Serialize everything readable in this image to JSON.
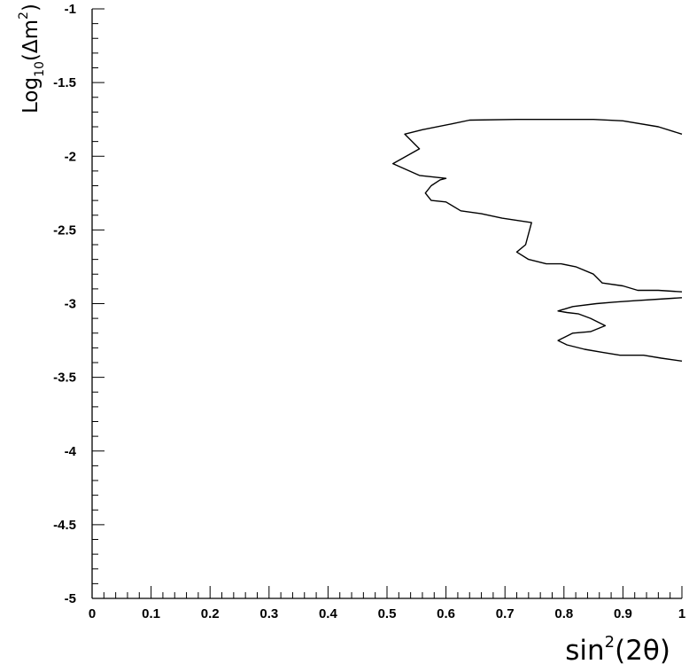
{
  "chart_data": {
    "type": "line",
    "title": "",
    "xlabel": {
      "base": "sin",
      "sup": "2",
      "rest": "(2θ)"
    },
    "ylabel": {
      "base": "Log",
      "sub": "10",
      "mid": "(Δm",
      "sup": "2",
      "end": ")"
    },
    "xlim": [
      0,
      1
    ],
    "ylim": [
      -5,
      -1
    ],
    "grid": false,
    "x_ticks": [
      0,
      0.1,
      0.2,
      0.3,
      0.4,
      0.5,
      0.6,
      0.7,
      0.8,
      0.9,
      1
    ],
    "x_tick_labels": [
      "0",
      "0.1",
      "0.2",
      "0.3",
      "0.4",
      "0.5",
      "0.6",
      "0.7",
      "0.8",
      "0.9",
      "1"
    ],
    "y_ticks": [
      -1,
      -1.5,
      -2,
      -2.5,
      -3,
      -3.5,
      -4,
      -4.5,
      -5
    ],
    "y_tick_labels": [
      "-1",
      "-1.5",
      "-2",
      "-2.5",
      "-3",
      "-3.5",
      "-4",
      "-4.5",
      "-5"
    ],
    "series": [
      {
        "points": [
          [
            1.0,
            -1.85
          ],
          [
            0.96,
            -1.8
          ],
          [
            0.9,
            -1.76
          ],
          [
            0.85,
            -1.75
          ],
          [
            0.8,
            -1.75
          ],
          [
            0.72,
            -1.75
          ],
          [
            0.64,
            -1.755
          ],
          [
            0.61,
            -1.78
          ],
          [
            0.56,
            -1.82
          ],
          [
            0.53,
            -1.85
          ],
          [
            0.555,
            -1.95
          ],
          [
            0.51,
            -2.05
          ],
          [
            0.555,
            -2.13
          ],
          [
            0.6,
            -2.15
          ],
          [
            0.59,
            -2.16
          ],
          [
            0.575,
            -2.2
          ],
          [
            0.565,
            -2.25
          ],
          [
            0.575,
            -2.3
          ],
          [
            0.6,
            -2.31
          ],
          [
            0.625,
            -2.37
          ],
          [
            0.66,
            -2.39
          ],
          [
            0.695,
            -2.42
          ],
          [
            0.745,
            -2.45
          ],
          [
            0.735,
            -2.6
          ],
          [
            0.72,
            -2.65
          ],
          [
            0.74,
            -2.7
          ],
          [
            0.77,
            -2.73
          ],
          [
            0.795,
            -2.73
          ],
          [
            0.82,
            -2.75
          ],
          [
            0.85,
            -2.8
          ],
          [
            0.865,
            -2.86
          ],
          [
            0.9,
            -2.88
          ],
          [
            0.925,
            -2.91
          ],
          [
            0.96,
            -2.91
          ],
          [
            1.0,
            -2.92
          ]
        ]
      },
      {
        "points": [
          [
            1.0,
            -2.96
          ],
          [
            0.96,
            -2.97
          ],
          [
            0.92,
            -2.98
          ],
          [
            0.885,
            -2.99
          ],
          [
            0.855,
            -3.0
          ],
          [
            0.815,
            -3.02
          ],
          [
            0.79,
            -3.05
          ],
          [
            0.805,
            -3.06
          ],
          [
            0.825,
            -3.07
          ],
          [
            0.845,
            -3.1
          ],
          [
            0.87,
            -3.15
          ],
          [
            0.845,
            -3.19
          ],
          [
            0.815,
            -3.2
          ],
          [
            0.8,
            -3.23
          ],
          [
            0.79,
            -3.25
          ],
          [
            0.805,
            -3.28
          ],
          [
            0.835,
            -3.31
          ],
          [
            0.865,
            -3.33
          ],
          [
            0.895,
            -3.35
          ],
          [
            0.935,
            -3.35
          ],
          [
            0.965,
            -3.37
          ],
          [
            1.0,
            -3.39
          ]
        ]
      }
    ]
  }
}
